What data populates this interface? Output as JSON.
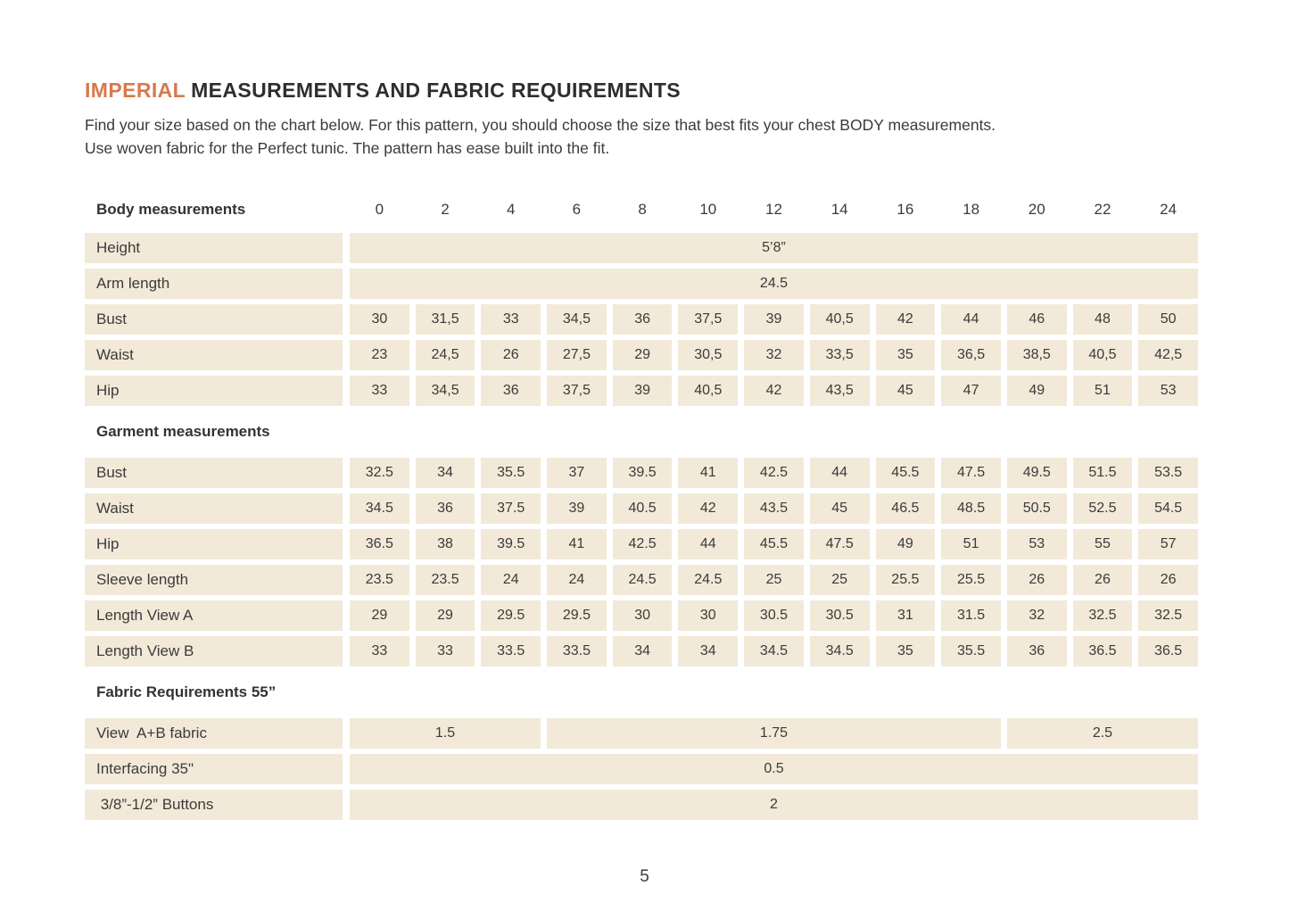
{
  "colors": {
    "accent": "#d8794e",
    "cell_bg": "#f2e9d8",
    "text": "#3b3b3b"
  },
  "header": {
    "title_accent": "IMPERIAL",
    "title_rest": "MEASUREMENTS AND FABRIC REQUIREMENTS",
    "subtitle_line1": "Find your size based on the chart below. For this pattern, you should choose the size that best fits your chest BODY measurements.",
    "subtitle_line2": "Use woven fabric for the Perfect tunic. The pattern has ease built into the fit."
  },
  "table": {
    "header_label": "Body measurements",
    "sizes": [
      "0",
      "2",
      "4",
      "6",
      "8",
      "10",
      "12",
      "14",
      "16",
      "18",
      "20",
      "22",
      "24"
    ],
    "rows": [
      {
        "type": "merged",
        "label": "Height",
        "value": "5’8”"
      },
      {
        "type": "merged",
        "label": "Arm length",
        "value": "24.5"
      },
      {
        "type": "cells",
        "label": "Bust",
        "values": [
          "30",
          "31,5",
          "33",
          "34,5",
          "36",
          "37,5",
          "39",
          "40,5",
          "42",
          "44",
          "46",
          "48",
          "50"
        ]
      },
      {
        "type": "cells",
        "label": "Waist",
        "values": [
          "23",
          "24,5",
          "26",
          "27,5",
          "29",
          "30,5",
          "32",
          "33,5",
          "35",
          "36,5",
          "38,5",
          "40,5",
          "42,5"
        ]
      },
      {
        "type": "cells",
        "label": "Hip",
        "values": [
          "33",
          "34,5",
          "36",
          "37,5",
          "39",
          "40,5",
          "42",
          "43,5",
          "45",
          "47",
          "49",
          "51",
          "53"
        ]
      },
      {
        "type": "section",
        "label": "Garment measurements"
      },
      {
        "type": "cells",
        "label": "Bust",
        "values": [
          "32.5",
          "34",
          "35.5",
          "37",
          "39.5",
          "41",
          "42.5",
          "44",
          "45.5",
          "47.5",
          "49.5",
          "51.5",
          "53.5"
        ]
      },
      {
        "type": "cells",
        "label": "Waist",
        "values": [
          "34.5",
          "36",
          "37.5",
          "39",
          "40.5",
          "42",
          "43.5",
          "45",
          "46.5",
          "48.5",
          "50.5",
          "52.5",
          "54.5"
        ]
      },
      {
        "type": "cells",
        "label": "Hip",
        "values": [
          "36.5",
          "38",
          "39.5",
          "41",
          "42.5",
          "44",
          "45.5",
          "47.5",
          "49",
          "51",
          "53",
          "55",
          "57"
        ]
      },
      {
        "type": "cells",
        "label": "Sleeve length",
        "values": [
          "23.5",
          "23.5",
          "24",
          "24",
          "24.5",
          "24.5",
          "25",
          "25",
          "25.5",
          "25.5",
          "26",
          "26",
          "26"
        ]
      },
      {
        "type": "cells",
        "label": "Length View A",
        "values": [
          "29",
          "29",
          "29.5",
          "29.5",
          "30",
          "30",
          "30.5",
          "30.5",
          "31",
          "31.5",
          "32",
          "32.5",
          "32.5"
        ]
      },
      {
        "type": "cells",
        "label": "Length View B",
        "values": [
          "33",
          "33",
          "33.5",
          "33.5",
          "34",
          "34",
          "34.5",
          "34.5",
          "35",
          "35.5",
          "36",
          "36.5",
          "36.5"
        ]
      },
      {
        "type": "section",
        "label": "Fabric Requirements 55”"
      },
      {
        "type": "spans",
        "label": "View  A+B fabric",
        "spans": [
          {
            "value": "1.5",
            "cols": 3
          },
          {
            "value": "1.75",
            "cols": 7
          },
          {
            "value": "2.5",
            "cols": 3
          }
        ]
      },
      {
        "type": "merged",
        "label": "Interfacing 35\"",
        "value": "0.5"
      },
      {
        "type": "merged",
        "label": " 3/8”-1/2” Buttons",
        "value": "2"
      }
    ]
  },
  "footer": {
    "page_number": "5"
  }
}
